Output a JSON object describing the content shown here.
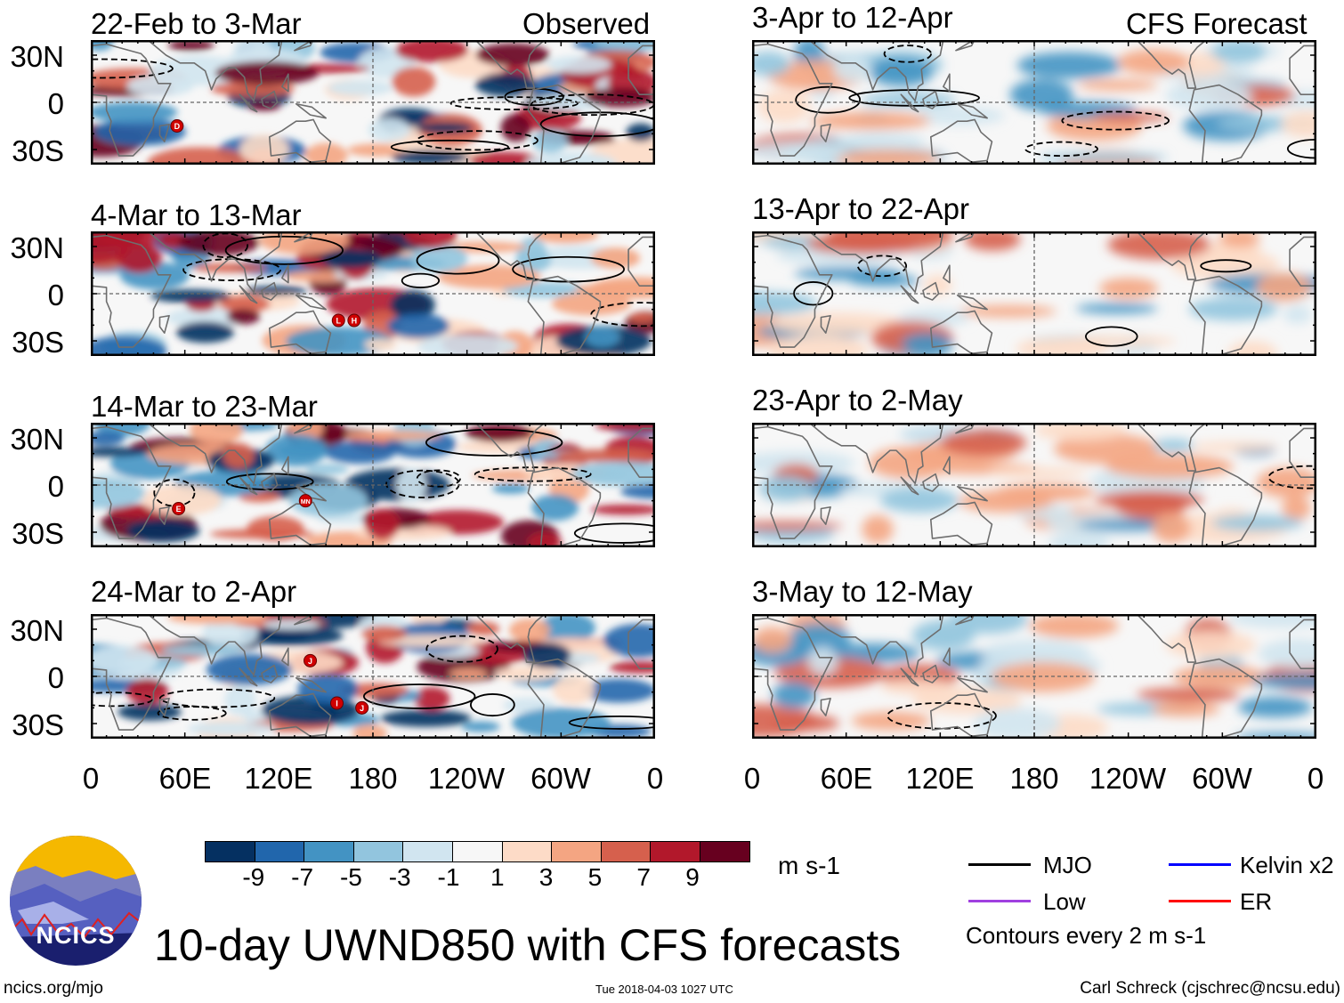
{
  "headers": {
    "observed": "Observed",
    "forecast": "CFS Forecast"
  },
  "panels": [
    {
      "title": "22-Feb to 3-Mar",
      "kind": "observed",
      "storms": [
        "D"
      ]
    },
    {
      "title": "4-Mar to 13-Mar",
      "kind": "observed",
      "storms": [
        "L",
        "H"
      ]
    },
    {
      "title": "14-Mar to 23-Mar",
      "kind": "observed",
      "storms": [
        "E",
        "MN"
      ]
    },
    {
      "title": "24-Mar to 2-Apr",
      "kind": "observed",
      "storms": [
        "J",
        "I",
        "J"
      ]
    },
    {
      "title": "3-Apr to 12-Apr",
      "kind": "forecast",
      "storms": []
    },
    {
      "title": "13-Apr to 22-Apr",
      "kind": "forecast",
      "storms": []
    },
    {
      "title": "23-Apr to 2-May",
      "kind": "forecast",
      "storms": []
    },
    {
      "title": "3-May to 12-May",
      "kind": "forecast",
      "storms": []
    }
  ],
  "y_axis_labels": [
    "30N",
    "0",
    "30S"
  ],
  "x_axis_labels": [
    "0",
    "60E",
    "120E",
    "180",
    "120W",
    "60W",
    "0"
  ],
  "colorbar": {
    "colors": [
      "#053061",
      "#2166ac",
      "#4393c3",
      "#92c5de",
      "#d1e5f0",
      "#f7f7f7",
      "#fddbc7",
      "#f4a582",
      "#d6604d",
      "#b2182b",
      "#67001f"
    ],
    "labels": [
      "-9",
      "-7",
      "-5",
      "-3",
      "-1",
      "1",
      "3",
      "5",
      "7",
      "9"
    ],
    "units": "m s-1"
  },
  "legend": {
    "items": [
      {
        "label": "MJO",
        "color": "#000000"
      },
      {
        "label": "Kelvin x2",
        "color": "#0000ff"
      },
      {
        "label": "Low",
        "color": "#a040e0"
      },
      {
        "label": "ER",
        "color": "#ff0000"
      }
    ],
    "contour_note": "Contours every 2 m s-1"
  },
  "logo_text": "NCICS",
  "main_title": "10-day UWND850 with CFS forecasts",
  "footer": {
    "url": "ncics.org/mjo",
    "timestamp": "Tue 2018-04-03 1027 UTC",
    "author": "Carl Schreck (cjschrec@ncsu.edu)"
  }
}
